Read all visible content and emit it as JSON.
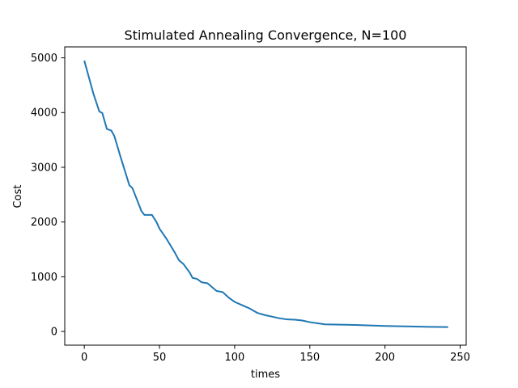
{
  "chart_data": {
    "type": "line",
    "title": "Stimulated Annealing Convergence, N=100",
    "xlabel": "times",
    "ylabel": "Cost",
    "xlim": [
      -13,
      254
    ],
    "ylim": [
      -250,
      5200
    ],
    "x_ticks": [
      0,
      50,
      100,
      150,
      200,
      250
    ],
    "y_ticks": [
      0,
      1000,
      2000,
      3000,
      4000,
      5000
    ],
    "grid": false,
    "color": "#1f77b4",
    "series": [
      {
        "x": [
          0,
          3,
          6,
          10,
          12,
          15,
          18,
          20,
          24,
          30,
          32,
          36,
          38,
          40,
          45,
          48,
          50,
          55,
          60,
          63,
          66,
          70,
          72,
          75,
          78,
          82,
          85,
          88,
          92,
          96,
          100,
          105,
          110,
          115,
          120,
          125,
          130,
          135,
          140,
          145,
          150,
          155,
          160,
          170,
          180,
          190,
          200,
          210,
          220,
          230,
          242
        ],
        "y": [
          4950,
          4650,
          4350,
          4020,
          3990,
          3700,
          3670,
          3570,
          3200,
          2670,
          2620,
          2340,
          2200,
          2130,
          2130,
          2000,
          1880,
          1680,
          1450,
          1300,
          1230,
          1080,
          980,
          960,
          900,
          880,
          810,
          740,
          720,
          620,
          540,
          480,
          420,
          340,
          300,
          270,
          240,
          220,
          215,
          200,
          170,
          150,
          130,
          125,
          120,
          110,
          100,
          95,
          90,
          85,
          80
        ]
      }
    ]
  }
}
